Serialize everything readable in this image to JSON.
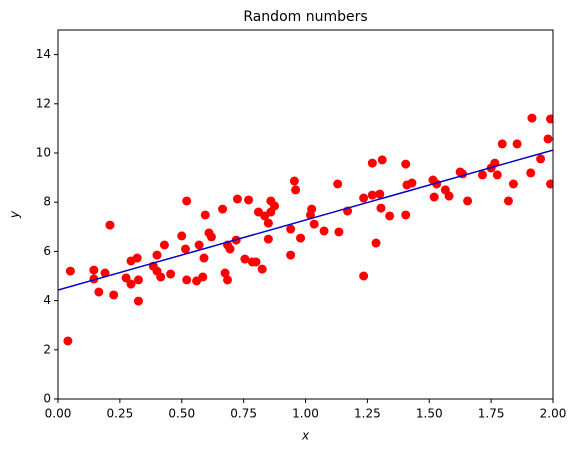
{
  "chart_data": {
    "type": "scatter",
    "title": "Random numbers",
    "xlabel": "x",
    "ylabel": "y",
    "x": [
      0.04,
      0.05,
      0.145,
      0.145,
      0.165,
      0.19,
      0.21,
      0.225,
      0.275,
      0.295,
      0.295,
      0.32,
      0.325,
      0.325,
      0.385,
      0.4,
      0.4,
      0.415,
      0.43,
      0.455,
      0.5,
      0.515,
      0.52,
      0.52,
      0.56,
      0.57,
      0.585,
      0.59,
      0.595,
      0.61,
      0.62,
      0.665,
      0.675,
      0.685,
      0.685,
      0.695,
      0.72,
      0.725,
      0.755,
      0.77,
      0.785,
      0.8,
      0.81,
      0.825,
      0.835,
      0.85,
      0.85,
      0.86,
      0.86,
      0.875,
      0.94,
      0.94,
      0.955,
      0.96,
      0.98,
      1.02,
      1.025,
      1.035,
      1.075,
      1.13,
      1.135,
      1.17,
      1.235,
      1.235,
      1.27,
      1.27,
      1.285,
      1.3,
      1.305,
      1.31,
      1.34,
      1.405,
      1.405,
      1.41,
      1.43,
      1.515,
      1.52,
      1.53,
      1.565,
      1.58,
      1.625,
      1.635,
      1.655,
      1.715,
      1.75,
      1.765,
      1.775,
      1.795,
      1.82,
      1.84,
      1.855,
      1.91,
      1.915,
      1.95,
      1.98,
      1.99,
      1.99
    ],
    "values": [
      2.36,
      5.2,
      5.24,
      4.88,
      4.35,
      5.12,
      7.07,
      4.23,
      4.92,
      5.61,
      4.67,
      5.73,
      4.84,
      3.98,
      5.4,
      5.85,
      5.2,
      4.96,
      6.26,
      5.08,
      6.63,
      6.1,
      8.05,
      4.84,
      4.8,
      6.26,
      4.96,
      5.73,
      7.48,
      6.75,
      6.59,
      7.72,
      5.12,
      4.84,
      6.26,
      6.1,
      6.46,
      8.13,
      5.69,
      8.09,
      5.57,
      5.57,
      7.6,
      5.28,
      7.44,
      7.15,
      6.5,
      7.6,
      8.05,
      7.85,
      6.91,
      5.85,
      8.86,
      8.5,
      6.54,
      7.48,
      7.72,
      7.11,
      6.83,
      8.74,
      6.79,
      7.64,
      5.0,
      8.17,
      9.59,
      8.29,
      6.34,
      8.33,
      7.76,
      9.72,
      7.44,
      9.55,
      7.48,
      8.7,
      8.78,
      8.9,
      8.21,
      8.74,
      8.5,
      8.25,
      9.23,
      9.15,
      8.05,
      9.11,
      9.39,
      9.59,
      9.11,
      10.37,
      8.05,
      8.74,
      10.37,
      9.19,
      11.42,
      9.76,
      10.57,
      11.38,
      8.74
    ],
    "color": "#ff0000",
    "fit_line": {
      "x": [
        0,
        2
      ],
      "values": [
        4.43,
        10.12
      ],
      "color": "#0000cc"
    },
    "xlim": [
      0,
      2
    ],
    "ylim": [
      0,
      15
    ],
    "xticks": [
      {
        "value": 0,
        "label": "0.00"
      },
      {
        "value": 0.25,
        "label": "0.25"
      },
      {
        "value": 0.5,
        "label": "0.50"
      },
      {
        "value": 0.75,
        "label": "0.75"
      },
      {
        "value": 1,
        "label": "1.00"
      },
      {
        "value": 1.25,
        "label": "1.25"
      },
      {
        "value": 1.5,
        "label": "1.50"
      },
      {
        "value": 1.75,
        "label": "1.75"
      },
      {
        "value": 2,
        "label": "2.00"
      }
    ],
    "yticks": [
      0,
      2,
      4,
      6,
      8,
      10,
      12,
      14
    ],
    "grid": false
  }
}
